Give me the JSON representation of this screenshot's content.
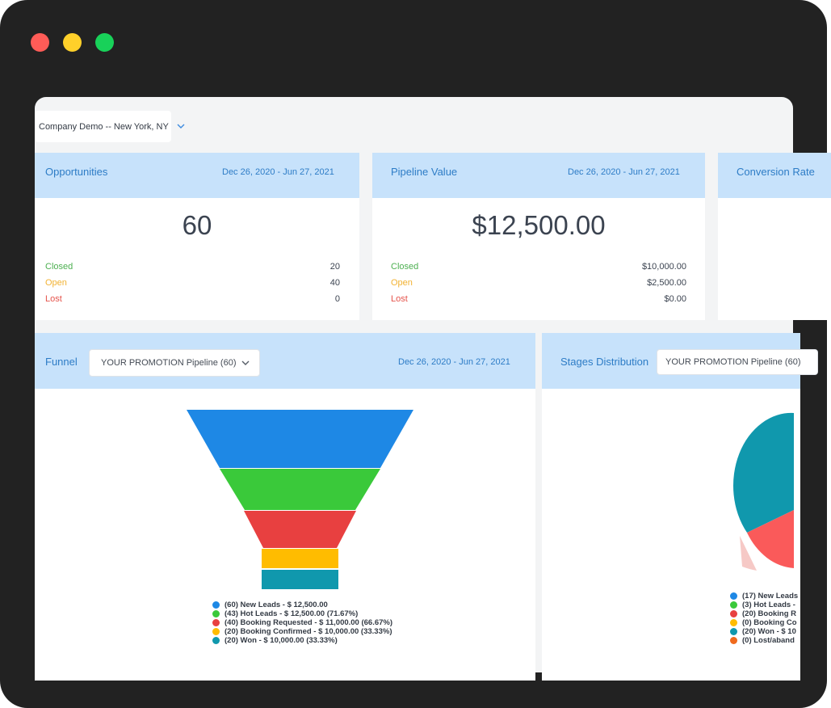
{
  "location": {
    "value": "Company Demo -- New York, NY"
  },
  "cards": {
    "opportunities": {
      "title": "Opportunities",
      "date": "Dec 26, 2020 - Jun 27, 2021",
      "total": "60",
      "stats": [
        {
          "label": "Closed",
          "value": "20"
        },
        {
          "label": "Open",
          "value": "40"
        },
        {
          "label": "Lost",
          "value": "0"
        }
      ]
    },
    "pipeline": {
      "title": "Pipeline Value",
      "date": "Dec 26, 2020 - Jun 27, 2021",
      "total": "$12,500.00",
      "stats": [
        {
          "label": "Closed",
          "value": "$10,000.00"
        },
        {
          "label": "Open",
          "value": "$2,500.00"
        },
        {
          "label": "Lost",
          "value": "$0.00"
        }
      ]
    },
    "conversion": {
      "title": "Conversion Rate"
    }
  },
  "funnel": {
    "title": "Funnel",
    "pipeline_select": "YOUR PROMOTION Pipeline (60)",
    "date": "Dec 26, 2020 - Jun 27, 2021",
    "legend": [
      {
        "label": "(60) New Leads - $ 12,500.00",
        "color": "#1e88e5"
      },
      {
        "label": "(43) Hot Leads - $ 12,500.00 (71.67%)",
        "color": "#3ac93a"
      },
      {
        "label": "(40) Booking Requested - $ 11,000.00 (66.67%)",
        "color": "#e84040"
      },
      {
        "label": "(20) Booking Confirmed - $ 10,000.00 (33.33%)",
        "color": "#ffbc00"
      },
      {
        "label": "(20) Won - $ 10,000.00 (33.33%)",
        "color": "#1098ad"
      }
    ]
  },
  "stages": {
    "title": "Stages Distribution",
    "pipeline_select": "YOUR PROMOTION Pipeline (60)",
    "legend": [
      {
        "label": "(17) New Leads",
        "color": "#1e88e5"
      },
      {
        "label": "(3) Hot Leads -",
        "color": "#3ac93a"
      },
      {
        "label": "(20) Booking R",
        "color": "#e84040"
      },
      {
        "label": "(0) Booking Co",
        "color": "#ffbc00"
      },
      {
        "label": "(20) Won - $ 10",
        "color": "#1098ad"
      },
      {
        "label": "(0) Lost/aband",
        "color": "#f06a1d"
      }
    ]
  }
}
